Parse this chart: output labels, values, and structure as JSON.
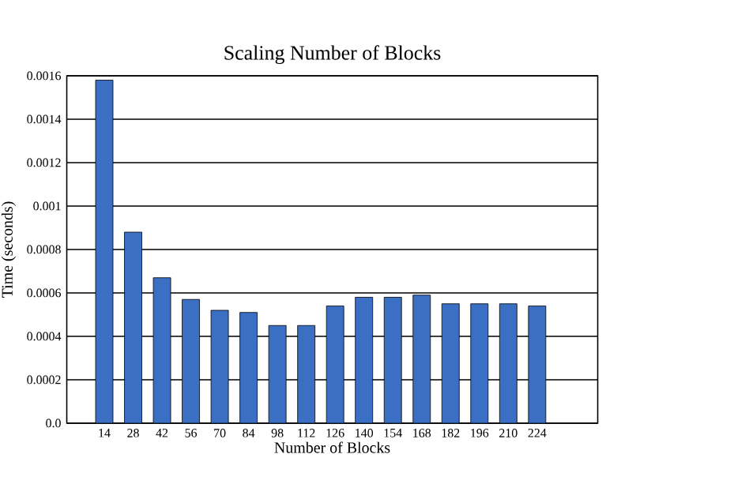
{
  "chart_data": {
    "type": "bar",
    "title": "Scaling Number of Blocks",
    "xlabel": "Number of Blocks",
    "ylabel": "Time (seconds)",
    "categories": [
      "14",
      "28",
      "42",
      "56",
      "70",
      "84",
      "98",
      "112",
      "126",
      "140",
      "154",
      "168",
      "182",
      "196",
      "210",
      "224"
    ],
    "values": [
      0.00158,
      0.00088,
      0.00067,
      0.00057,
      0.00052,
      0.00051,
      0.00045,
      0.00045,
      0.00054,
      0.00058,
      0.00058,
      0.00059,
      0.00055,
      0.00055,
      0.00055,
      0.00054
    ],
    "color": "#3a6fc4",
    "ylim": [
      0,
      0.0016
    ],
    "yticks": [
      {
        "value": 0,
        "label": "0.0"
      },
      0.0002,
      0.0004,
      0.0006,
      0.0008,
      0.001,
      0.0012,
      0.0014,
      0.0016
    ],
    "grid": "y"
  }
}
